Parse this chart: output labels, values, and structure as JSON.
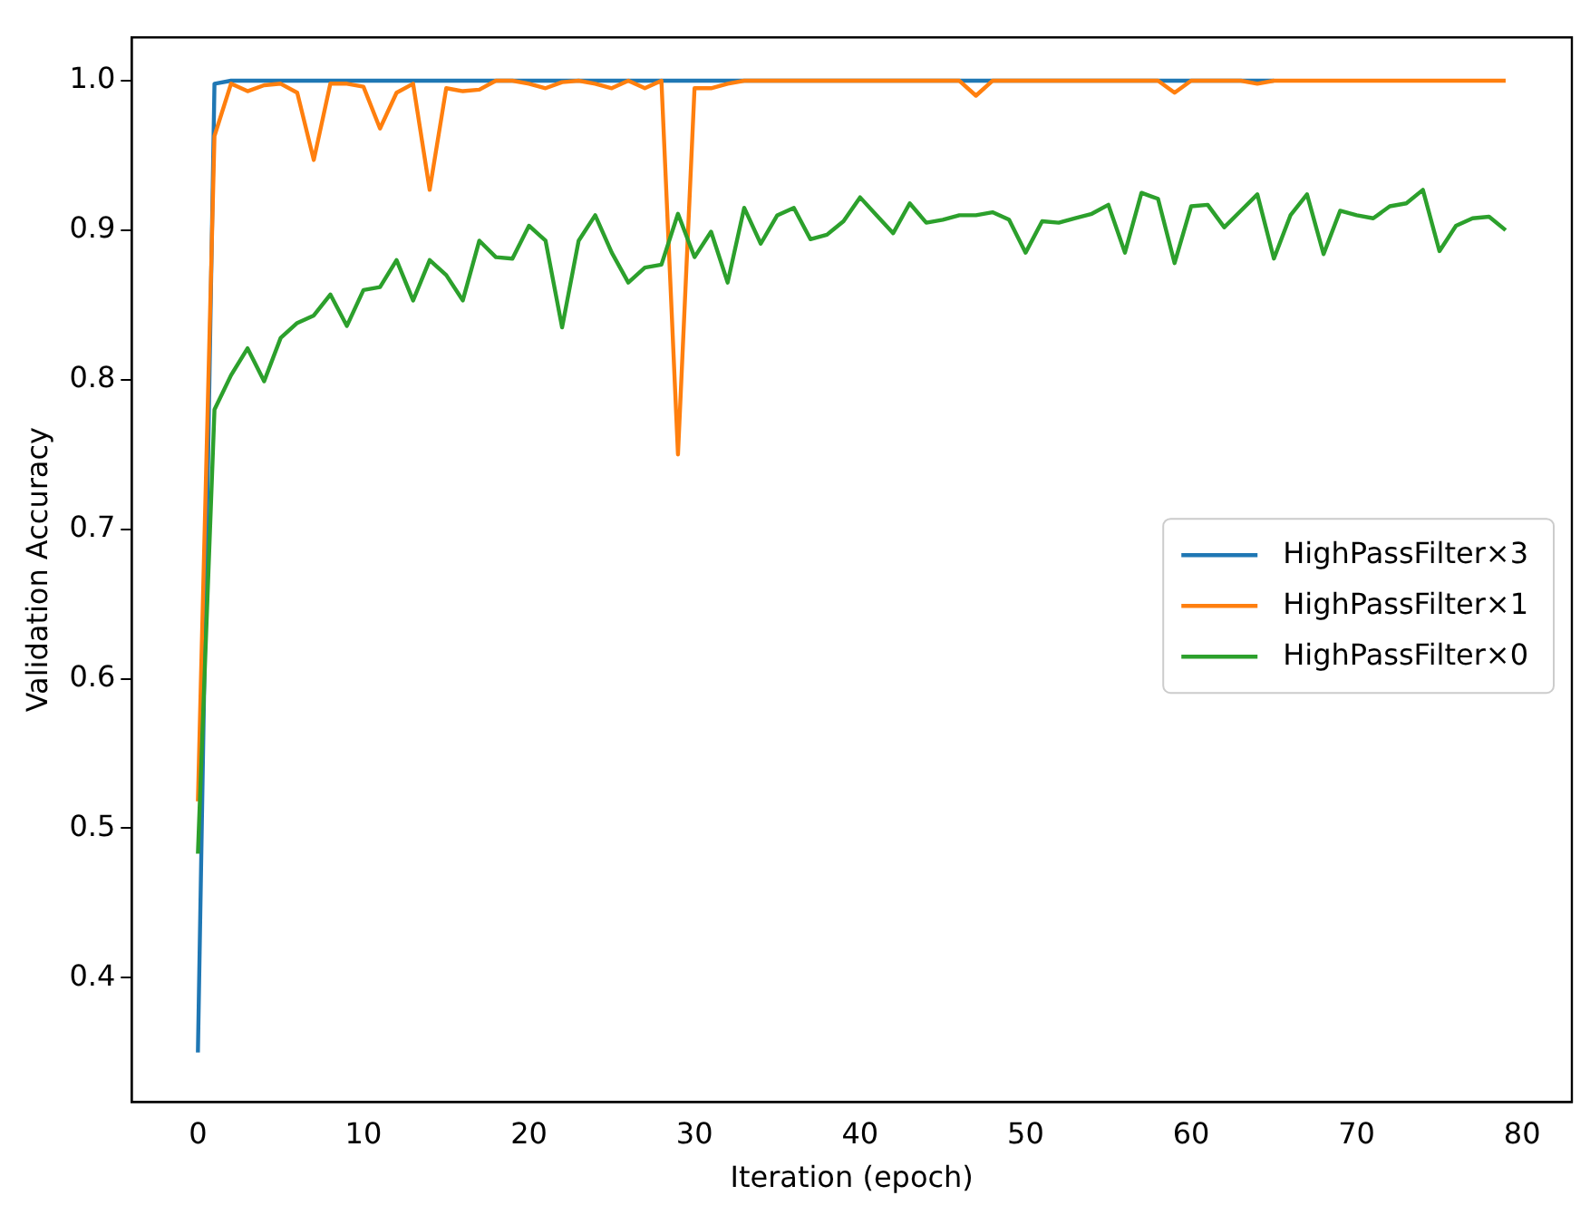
{
  "chart_data": {
    "type": "line",
    "xlabel": "Iteration (epoch)",
    "ylabel": "Validation Accuracy",
    "xlim": [
      -4,
      83
    ],
    "xticks": [
      0,
      10,
      20,
      30,
      40,
      50,
      60,
      70,
      80
    ],
    "ylim": [
      0.317,
      1.029
    ],
    "yticks": [
      0.4,
      0.5,
      0.6,
      0.7,
      0.8,
      0.9,
      {
        "value": 1,
        "label": "1.0"
      }
    ],
    "grid": false,
    "legend": "right",
    "marker": "none",
    "line_style": "solid",
    "x": [
      0,
      1,
      2,
      3,
      4,
      5,
      6,
      7,
      8,
      9,
      10,
      11,
      12,
      13,
      14,
      15,
      16,
      17,
      18,
      19,
      20,
      21,
      22,
      23,
      24,
      25,
      26,
      27,
      28,
      29,
      30,
      31,
      32,
      33,
      34,
      35,
      36,
      37,
      38,
      39,
      40,
      41,
      42,
      43,
      44,
      45,
      46,
      47,
      48,
      49,
      50,
      51,
      52,
      53,
      54,
      55,
      56,
      57,
      58,
      59,
      60,
      61,
      62,
      63,
      64,
      65,
      66,
      67,
      68,
      69,
      70,
      71,
      72,
      73,
      74,
      75,
      76,
      77,
      78,
      79
    ],
    "series": [
      {
        "name": "HighPassFilter×3",
        "color": "#1f77b4",
        "values": [
          0.35,
          0.998,
          1.0,
          1.0,
          1.0,
          1.0,
          1.0,
          1.0,
          1.0,
          1.0,
          1.0,
          1.0,
          1.0,
          1.0,
          1.0,
          1.0,
          1.0,
          1.0,
          1.0,
          1.0,
          1.0,
          1.0,
          1.0,
          1.0,
          1.0,
          1.0,
          1.0,
          1.0,
          1.0,
          1.0,
          1.0,
          1.0,
          1.0,
          1.0,
          null,
          null,
          null,
          null,
          null,
          null,
          null,
          null,
          null,
          null,
          null,
          null,
          1.0,
          1.0,
          1.0,
          null,
          null,
          null,
          null,
          null,
          null,
          null,
          null,
          null,
          1.0,
          1.0,
          1.0,
          null,
          null,
          1.0,
          1.0,
          1.0,
          null,
          null,
          null,
          null,
          null,
          null,
          null,
          null,
          null,
          null,
          null,
          null,
          null,
          null
        ]
      },
      {
        "name": "HighPassFilter×1",
        "color": "#ff7f0e",
        "values": [
          0.518,
          0.963,
          0.998,
          0.993,
          0.997,
          0.998,
          0.992,
          0.947,
          0.998,
          0.998,
          0.996,
          0.968,
          0.992,
          0.998,
          0.927,
          0.995,
          0.993,
          0.994,
          1.0,
          1.0,
          0.998,
          0.995,
          0.999,
          1.0,
          0.998,
          0.995,
          1.0,
          0.995,
          1.0,
          0.75,
          0.995,
          0.995,
          0.998,
          1.0,
          1.0,
          1.0,
          1.0,
          1.0,
          1.0,
          1.0,
          1.0,
          1.0,
          1.0,
          1.0,
          1.0,
          1.0,
          1.0,
          0.99,
          1.0,
          1.0,
          1.0,
          1.0,
          1.0,
          1.0,
          1.0,
          1.0,
          1.0,
          1.0,
          1.0,
          0.992,
          1.0,
          1.0,
          1.0,
          1.0,
          0.998,
          1.0,
          1.0,
          1.0,
          1.0,
          1.0,
          1.0,
          1.0,
          1.0,
          1.0,
          1.0,
          1.0,
          1.0,
          1.0,
          1.0,
          1.0
        ]
      },
      {
        "name": "HighPassFilter×0",
        "color": "#2ca02c",
        "values": [
          0.483,
          0.78,
          0.803,
          0.821,
          0.799,
          0.828,
          0.838,
          0.843,
          0.857,
          0.836,
          0.86,
          0.862,
          0.88,
          0.853,
          0.88,
          0.87,
          0.853,
          0.893,
          0.882,
          0.881,
          0.903,
          0.893,
          0.835,
          0.893,
          0.91,
          0.885,
          0.865,
          0.875,
          0.877,
          0.911,
          0.882,
          0.899,
          0.865,
          0.915,
          0.891,
          0.91,
          0.915,
          0.894,
          0.897,
          0.906,
          0.922,
          0.91,
          0.898,
          0.918,
          0.905,
          0.907,
          0.91,
          0.91,
          0.912,
          0.907,
          0.885,
          0.906,
          0.905,
          0.908,
          0.911,
          0.917,
          0.885,
          0.925,
          0.921,
          0.878,
          0.916,
          0.917,
          0.902,
          0.913,
          0.924,
          0.881,
          0.91,
          0.924,
          0.884,
          0.913,
          0.91,
          0.908,
          0.916,
          0.918,
          0.927,
          0.886,
          0.903,
          0.908,
          0.909,
          0.9
        ]
      }
    ]
  }
}
